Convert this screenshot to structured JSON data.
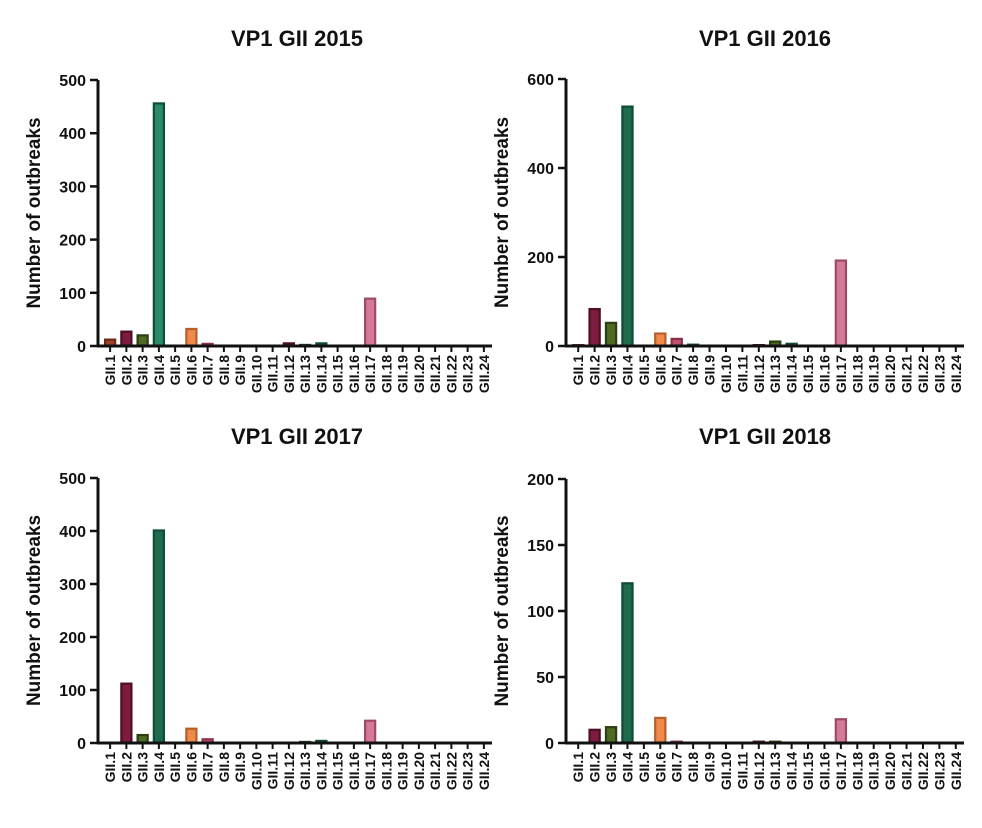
{
  "chart_data": [
    {
      "type": "bar",
      "title": "VP1 GII 2015",
      "ylabel": "Number of outbreaks",
      "xlabel": "",
      "ylim": [
        0,
        500
      ],
      "yticks": [
        0,
        100,
        200,
        300,
        400,
        500
      ],
      "categories": [
        "GII.1",
        "GII.2",
        "GII.3",
        "GII.4",
        "GII.5",
        "GII.6",
        "GII.7",
        "GII.8",
        "GII.9",
        "GII.10",
        "GII.11",
        "GII.12",
        "GII.13",
        "GII.14",
        "GII.15",
        "GII.16",
        "GII.17",
        "GII.18",
        "GII.19",
        "GII.20",
        "GII.21",
        "GII.22",
        "GII.23",
        "GII.24"
      ],
      "values": [
        12,
        27,
        20,
        456,
        0,
        32,
        4,
        0,
        0,
        0,
        0,
        5,
        2,
        5,
        0,
        0,
        89,
        0,
        0,
        0,
        0,
        0,
        0,
        0
      ]
    },
    {
      "type": "bar",
      "title": "VP1 GII 2016",
      "ylabel": "Number of outbreaks",
      "xlabel": "",
      "ylim": [
        0,
        600
      ],
      "yticks": [
        0,
        200,
        400,
        600
      ],
      "categories": [
        "GII.1",
        "GII.2",
        "GII.3",
        "GII.4",
        "GII.5",
        "GII.6",
        "GII.7",
        "GII.8",
        "GII.9",
        "GII.10",
        "GII.11",
        "GII.12",
        "GII.13",
        "GII.14",
        "GII.15",
        "GII.16",
        "GII.17",
        "GII.18",
        "GII.19",
        "GII.20",
        "GII.21",
        "GII.22",
        "GII.23",
        "GII.24"
      ],
      "values": [
        2,
        83,
        52,
        538,
        0,
        28,
        16,
        3,
        0,
        0,
        0,
        2,
        10,
        5,
        0,
        0,
        192,
        0,
        0,
        0,
        0,
        0,
        0,
        0
      ]
    },
    {
      "type": "bar",
      "title": "VP1 GII 2017",
      "ylabel": "Number of outbreaks",
      "xlabel": "",
      "ylim": [
        0,
        500
      ],
      "yticks": [
        0,
        100,
        200,
        300,
        400,
        500
      ],
      "categories": [
        "GII.1",
        "GII.2",
        "GII.3",
        "GII.4",
        "GII.5",
        "GII.6",
        "GII.7",
        "GII.8",
        "GII.9",
        "GII.10",
        "GII.11",
        "GII.12",
        "GII.13",
        "GII.14",
        "GII.15",
        "GII.16",
        "GII.17",
        "GII.18",
        "GII.19",
        "GII.20",
        "GII.21",
        "GII.22",
        "GII.23",
        "GII.24"
      ],
      "values": [
        0,
        112,
        15,
        401,
        0,
        27,
        7,
        0,
        0,
        0,
        0,
        0,
        2,
        4,
        0,
        0,
        42,
        0,
        0,
        0,
        0,
        0,
        0,
        0
      ]
    },
    {
      "type": "bar",
      "title": "VP1 GII 2018",
      "ylabel": "Number of outbreaks",
      "xlabel": "",
      "ylim": [
        0,
        200
      ],
      "yticks": [
        0,
        50,
        100,
        150,
        200
      ],
      "categories": [
        "GII.1",
        "GII.2",
        "GII.3",
        "GII.4",
        "GII.5",
        "GII.6",
        "GII.7",
        "GII.8",
        "GII.9",
        "GII.10",
        "GII.11",
        "GII.12",
        "GII.13",
        "GII.14",
        "GII.15",
        "GII.16",
        "GII.17",
        "GII.18",
        "GII.19",
        "GII.20",
        "GII.21",
        "GII.22",
        "GII.23",
        "GII.24"
      ],
      "values": [
        0,
        10,
        12,
        121,
        0,
        19,
        1,
        0,
        0,
        0,
        0,
        1,
        1,
        0,
        0,
        0,
        18,
        0,
        0,
        0,
        0,
        0,
        0,
        0
      ]
    }
  ],
  "colors": {
    "category_fill": [
      "#a0412a",
      "#7d1c3c",
      "#4d6b23",
      "#217a5c",
      "#8a8a8a",
      "#ef8a4a",
      "#c0546f",
      "#2a7a5c",
      "#8a8a8a",
      "#8a8a8a",
      "#8a8a8a",
      "#7d1c3c",
      "#4d6b23",
      "#217a5c",
      "#8a8a8a",
      "#8a8a8a",
      "#d47a98",
      "#8a8a8a",
      "#8a8a8a",
      "#8a8a8a",
      "#8a8a8a",
      "#8a8a8a",
      "#8a8a8a",
      "#8a8a8a"
    ],
    "category_stroke": [
      "#6e2a17",
      "#4e0f24",
      "#2c3f12",
      "#0f4d37",
      "#555555",
      "#b5602a",
      "#8a3049",
      "#0f4d37",
      "#555555",
      "#555555",
      "#555555",
      "#4e0f24",
      "#2c3f12",
      "#0f4d37",
      "#555555",
      "#555555",
      "#9c4a67",
      "#555555",
      "#555555",
      "#555555",
      "#555555",
      "#555555",
      "#555555",
      "#555555"
    ],
    "gii4_panel_fill": [
      "#2a8a6a",
      "#1e6b4e",
      "#1e6b4e",
      "#1e6b4e"
    ],
    "axis": "#111111"
  }
}
